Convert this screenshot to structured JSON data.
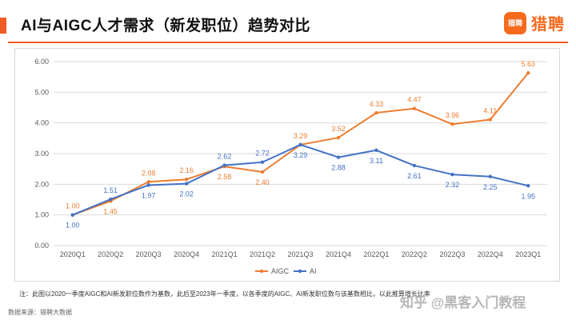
{
  "header": {
    "title": "AI与AIGC人才需求（新发职位）趋势对比",
    "logo_mark": "猎聘",
    "logo_text": "猎聘"
  },
  "footer": {
    "note": "注：此图以2020一季度AIGC和AI新发职位数作为基数，此后至2023年一季度，以各季度的AIGC、AI新发职位数与该基数相比，以此推算增长比率",
    "source": "数据来源：猎聘大数据",
    "watermark": "知乎 @黑客入门教程"
  },
  "colors": {
    "aigc": "#ED7D31",
    "ai": "#4472C4",
    "accent": "#f05a24"
  },
  "chart_data": {
    "type": "line",
    "title": "",
    "xlabel": "",
    "ylabel": "",
    "categories": [
      "2020Q1",
      "2020Q2",
      "2020Q3",
      "2020Q4",
      "2021Q1",
      "2021Q2",
      "2021Q3",
      "2021Q4",
      "2022Q1",
      "2022Q2",
      "2022Q3",
      "2022Q4",
      "2023Q1"
    ],
    "ylim": [
      0,
      6
    ],
    "yticks": [
      "0.00",
      "1.00",
      "2.00",
      "3.00",
      "4.00",
      "5.00",
      "6.00"
    ],
    "grid": true,
    "legend_position": "bottom",
    "series": [
      {
        "name": "AIGC",
        "color": "#ED7D31",
        "values": [
          1.0,
          1.45,
          2.08,
          2.16,
          2.58,
          2.4,
          3.29,
          3.52,
          4.33,
          4.47,
          3.96,
          4.11,
          5.63
        ],
        "labels": [
          "1.00",
          "1.45",
          "2.08",
          "2.16",
          "2.58",
          "2.40",
          "3.29",
          "3.52",
          "4.33",
          "4.47",
          "3.96",
          "4.11",
          "5.63"
        ]
      },
      {
        "name": "AI",
        "color": "#4472C4",
        "values": [
          1.0,
          1.51,
          1.97,
          2.02,
          2.62,
          2.72,
          3.29,
          2.88,
          3.11,
          2.61,
          2.32,
          2.25,
          1.95
        ],
        "labels": [
          "1.00",
          "1.51",
          "1.97",
          "2.02",
          "2.62",
          "2.72",
          "3.29",
          "2.88",
          "3.11",
          "2.61",
          "2.32",
          "2.25",
          "1.95"
        ]
      }
    ]
  }
}
